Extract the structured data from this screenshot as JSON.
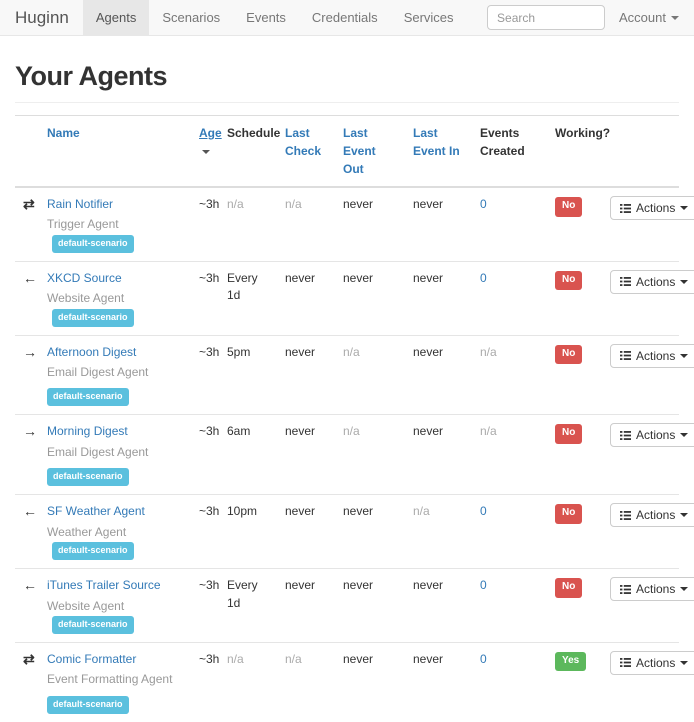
{
  "navbar": {
    "brand": "Huginn",
    "items": [
      {
        "label": "Agents",
        "active": true
      },
      {
        "label": "Scenarios",
        "active": false
      },
      {
        "label": "Events",
        "active": false
      },
      {
        "label": "Credentials",
        "active": false
      },
      {
        "label": "Services",
        "active": false
      }
    ],
    "search_placeholder": "Search",
    "account_label": "Account"
  },
  "page": {
    "title": "Your Agents"
  },
  "table": {
    "headers": [
      {
        "label": "Name"
      },
      {
        "label": "Age"
      },
      {
        "label": "Schedule"
      },
      {
        "label": "Last Check"
      },
      {
        "label": "Last Event Out"
      },
      {
        "label": "Last Event In"
      },
      {
        "label": "Events Created"
      },
      {
        "label": "Working?"
      }
    ],
    "actions_label": "Actions",
    "rows": [
      {
        "direction": "transfer",
        "name": "Rain Notifier",
        "type": "Trigger Agent",
        "scenario": "default-scenario",
        "badge_position": "inline",
        "age": "~3h",
        "schedule": {
          "text": "n/a",
          "muted": true
        },
        "last_check": {
          "text": "n/a",
          "muted": true
        },
        "last_event_out": {
          "text": "never"
        },
        "last_event_in": {
          "text": "never"
        },
        "events_created": {
          "text": "0",
          "link": true
        },
        "working": {
          "text": "No",
          "status": "no"
        }
      },
      {
        "direction": "arrow-left",
        "name": "XKCD Source",
        "type": "Website Agent",
        "scenario": "default-scenario",
        "badge_position": "inline",
        "age": "~3h",
        "schedule": {
          "text": "Every 1d"
        },
        "last_check": {
          "text": "never"
        },
        "last_event_out": {
          "text": "never"
        },
        "last_event_in": {
          "text": "never"
        },
        "events_created": {
          "text": "0",
          "link": true
        },
        "working": {
          "text": "No",
          "status": "no"
        }
      },
      {
        "direction": "arrow-right",
        "name": "Afternoon Digest",
        "type": "Email Digest Agent",
        "scenario": "default-scenario",
        "badge_position": "below",
        "age": "~3h",
        "schedule": {
          "text": "5pm"
        },
        "last_check": {
          "text": "never"
        },
        "last_event_out": {
          "text": "n/a",
          "muted": true
        },
        "last_event_in": {
          "text": "never"
        },
        "events_created": {
          "text": "n/a",
          "muted": true
        },
        "working": {
          "text": "No",
          "status": "no"
        }
      },
      {
        "direction": "arrow-right",
        "name": "Morning Digest",
        "type": "Email Digest Agent",
        "scenario": "default-scenario",
        "badge_position": "below",
        "age": "~3h",
        "schedule": {
          "text": "6am"
        },
        "last_check": {
          "text": "never"
        },
        "last_event_out": {
          "text": "n/a",
          "muted": true
        },
        "last_event_in": {
          "text": "never"
        },
        "events_created": {
          "text": "n/a",
          "muted": true
        },
        "working": {
          "text": "No",
          "status": "no"
        }
      },
      {
        "direction": "arrow-left",
        "name": "SF Weather Agent",
        "type": "Weather Agent",
        "scenario": "default-scenario",
        "badge_position": "inline",
        "age": "~3h",
        "schedule": {
          "text": "10pm"
        },
        "last_check": {
          "text": "never"
        },
        "last_event_out": {
          "text": "never"
        },
        "last_event_in": {
          "text": "n/a",
          "muted": true
        },
        "events_created": {
          "text": "0",
          "link": true
        },
        "working": {
          "text": "No",
          "status": "no"
        }
      },
      {
        "direction": "arrow-left",
        "name": "iTunes Trailer Source",
        "type": "Website Agent",
        "scenario": "default-scenario",
        "badge_position": "inline",
        "age": "~3h",
        "schedule": {
          "text": "Every 1d"
        },
        "last_check": {
          "text": "never"
        },
        "last_event_out": {
          "text": "never"
        },
        "last_event_in": {
          "text": "never"
        },
        "events_created": {
          "text": "0",
          "link": true
        },
        "working": {
          "text": "No",
          "status": "no"
        }
      },
      {
        "direction": "transfer",
        "name": "Comic Formatter",
        "type": "Event Formatting Agent",
        "scenario": "default-scenario",
        "badge_position": "below",
        "age": "~3h",
        "schedule": {
          "text": "n/a",
          "muted": true
        },
        "last_check": {
          "text": "n/a",
          "muted": true
        },
        "last_event_out": {
          "text": "never"
        },
        "last_event_in": {
          "text": "never"
        },
        "events_created": {
          "text": "0",
          "link": true
        },
        "working": {
          "text": "Yes",
          "status": "yes"
        }
      }
    ]
  },
  "colors": {
    "link": "#337ab7",
    "badge_info": "#5bc0de",
    "label_danger": "#d9534f",
    "label_success": "#5cb85c",
    "navbar_bg": "#f8f8f8",
    "navbar_border": "#e7e7e7",
    "table_border": "#ddd"
  }
}
